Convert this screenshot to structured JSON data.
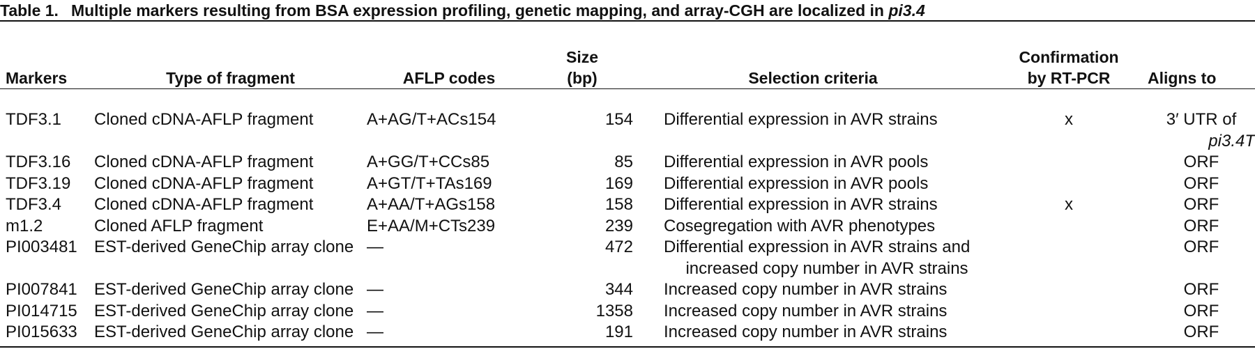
{
  "caption": {
    "label": "Table 1.",
    "text": "Multiple markers resulting from BSA expression profiling, genetic mapping, and array-CGH are localized in",
    "gene": "pi3.4"
  },
  "columns": {
    "markers": "Markers",
    "type": "Type of fragment",
    "aflp": "AFLP codes",
    "size_line1": "Size",
    "size_line2": "(bp)",
    "criteria": "Selection criteria",
    "confirm_line1": "Confirmation",
    "confirm_line2": "by RT-PCR",
    "aligns": "Aligns to"
  },
  "rows": [
    {
      "marker": "TDF3.1",
      "type": "Cloned cDNA-AFLP fragment",
      "aflp": "A+AG/T+ACs154",
      "size": "154",
      "criteria": "Differential expression in AVR strains",
      "criteria2": "",
      "confirm": "x",
      "aligns": "3′ UTR of",
      "aligns2": "pi3.4T"
    },
    {
      "marker": "TDF3.16",
      "type": "Cloned cDNA-AFLP fragment",
      "aflp": "A+GG/T+CCs85",
      "size": "85",
      "criteria": "Differential expression in AVR pools",
      "criteria2": "",
      "confirm": "",
      "aligns": "ORF",
      "aligns2": ""
    },
    {
      "marker": "TDF3.19",
      "type": "Cloned cDNA-AFLP fragment",
      "aflp": "A+GT/T+TAs169",
      "size": "169",
      "criteria": "Differential expression in AVR pools",
      "criteria2": "",
      "confirm": "",
      "aligns": "ORF",
      "aligns2": ""
    },
    {
      "marker": "TDF3.4",
      "type": "Cloned cDNA-AFLP fragment",
      "aflp": "A+AA/T+AGs158",
      "size": "158",
      "criteria": "Differential expression in AVR strains",
      "criteria2": "",
      "confirm": "x",
      "aligns": "ORF",
      "aligns2": ""
    },
    {
      "marker": "m1.2",
      "type": "Cloned AFLP fragment",
      "aflp": "E+AA/M+CTs239",
      "size": "239",
      "criteria": "Cosegregation with AVR phenotypes",
      "criteria2": "",
      "confirm": "",
      "aligns": "ORF",
      "aligns2": ""
    },
    {
      "marker": "PI003481",
      "type": "EST-derived GeneChip array clone",
      "aflp": "—",
      "size": "472",
      "criteria": "Differential expression in AVR strains and",
      "criteria2": "increased copy number in AVR strains",
      "confirm": "",
      "aligns": "ORF",
      "aligns2": ""
    },
    {
      "marker": "PI007841",
      "type": "EST-derived GeneChip array clone",
      "aflp": "—",
      "size": "344",
      "criteria": "Increased copy number in AVR strains",
      "criteria2": "",
      "confirm": "",
      "aligns": "ORF",
      "aligns2": ""
    },
    {
      "marker": "PI014715",
      "type": "EST-derived GeneChip array clone",
      "aflp": "—",
      "size": "1358",
      "criteria": "Increased copy number in AVR strains",
      "criteria2": "",
      "confirm": "",
      "aligns": "ORF",
      "aligns2": ""
    },
    {
      "marker": "PI015633",
      "type": "EST-derived GeneChip array clone",
      "aflp": "—",
      "size": "191",
      "criteria": "Increased copy number in AVR strains",
      "criteria2": "",
      "confirm": "",
      "aligns": "ORF",
      "aligns2": ""
    }
  ]
}
